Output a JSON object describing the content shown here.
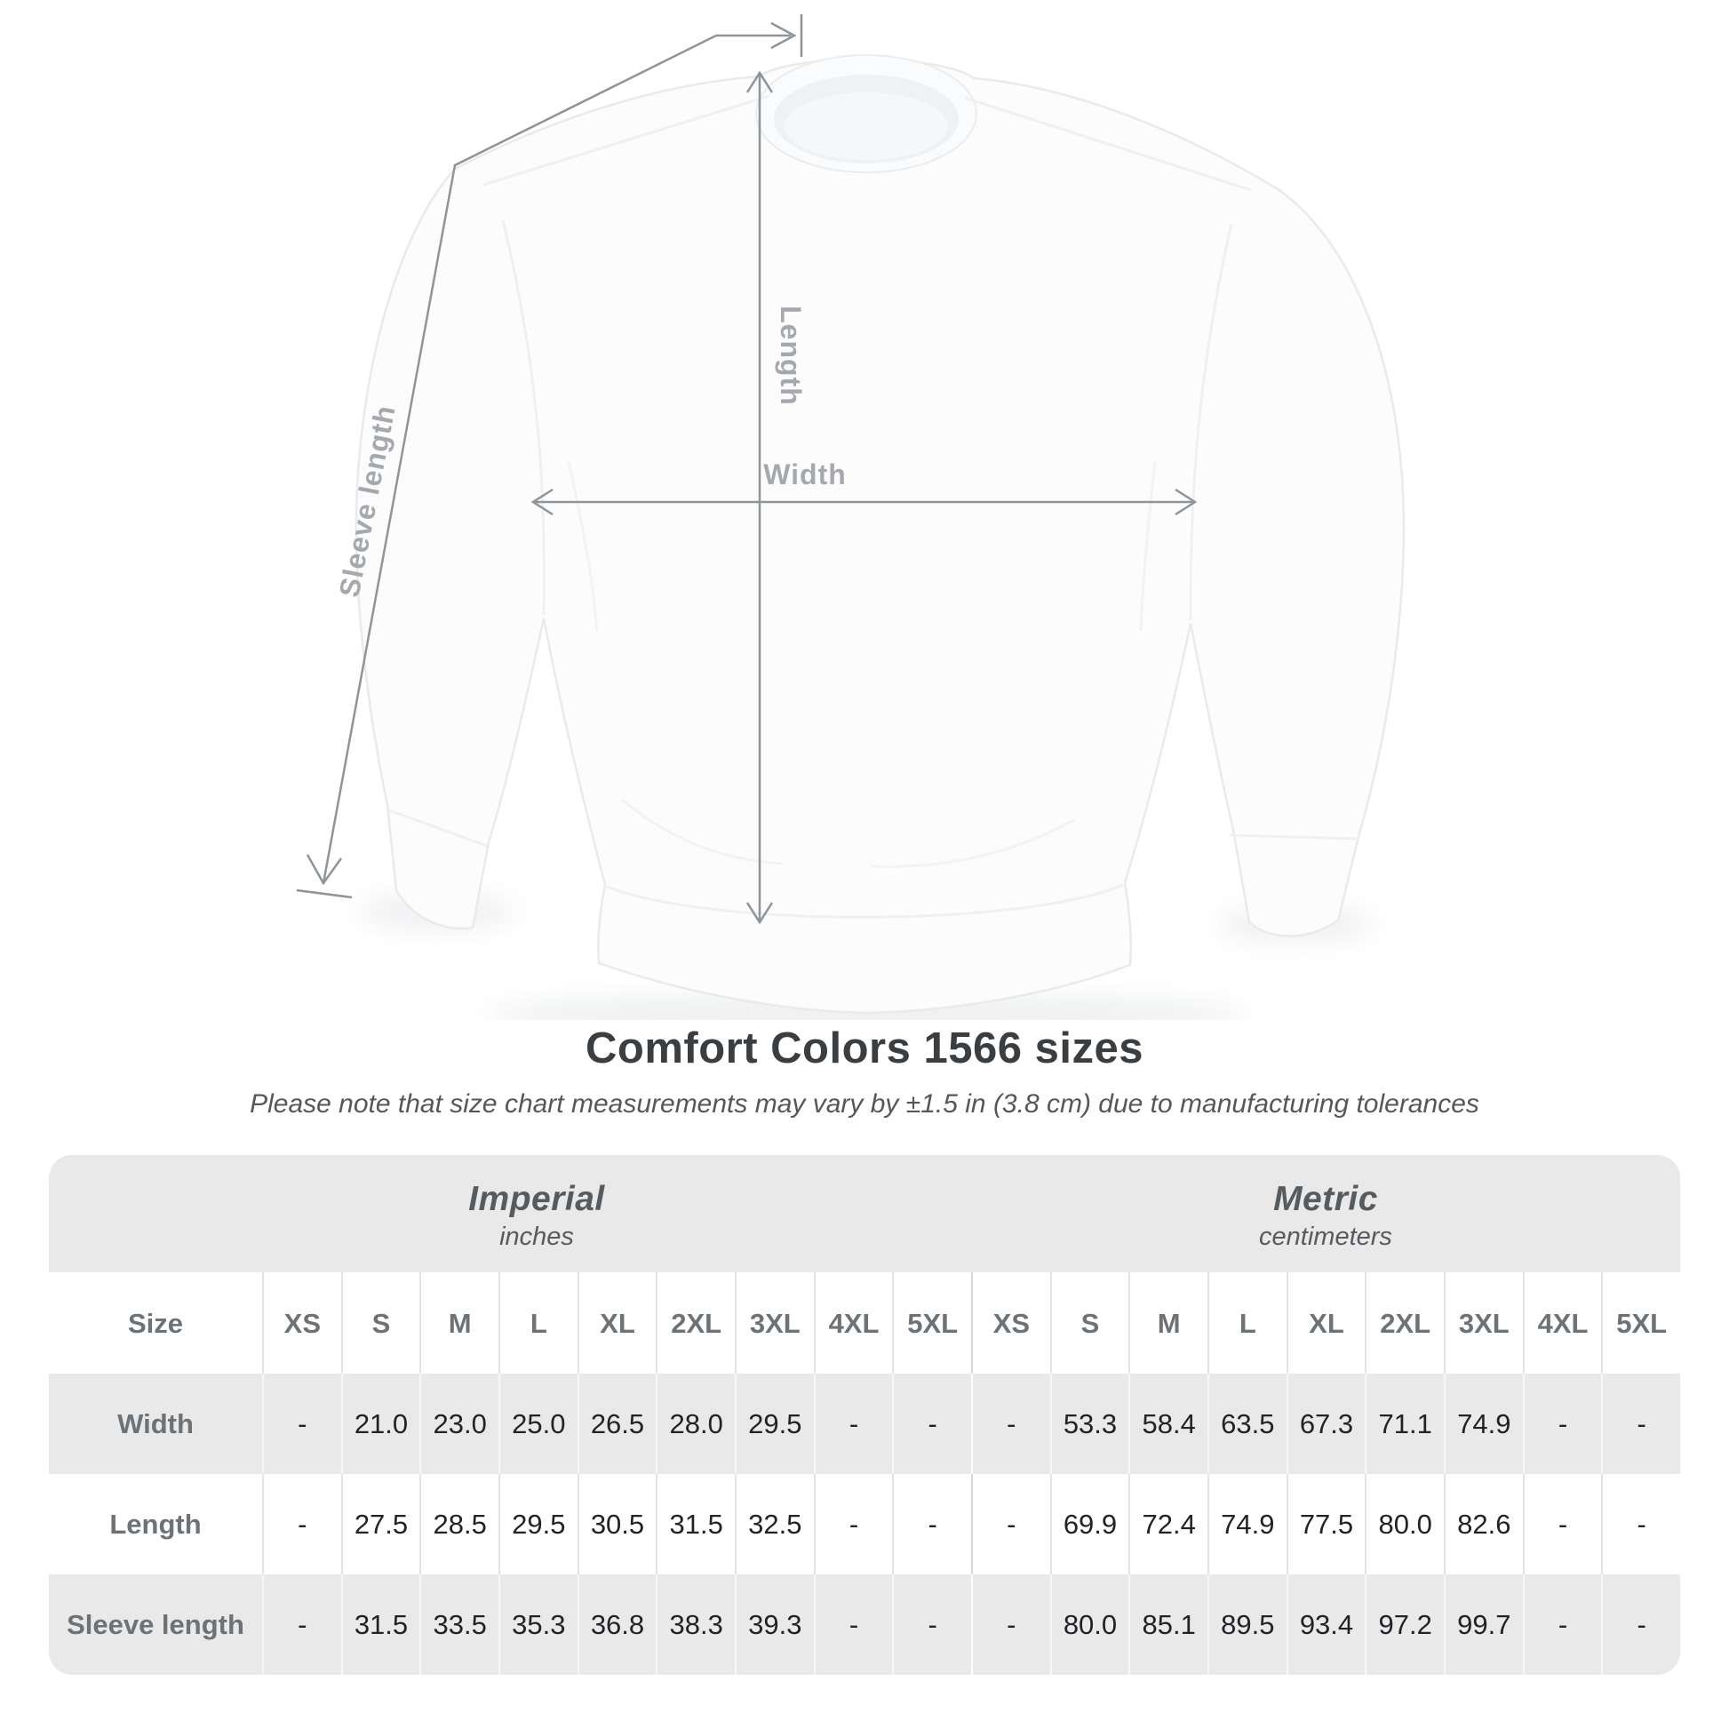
{
  "heading": {
    "title": "Comfort Colors 1566 sizes",
    "subtitle": "Please note that size chart measurements may vary by ±1.5 in (3.8 cm) due to manufacturing tolerances"
  },
  "diagram": {
    "labels": {
      "sleeve_length": "Sleeve length",
      "length": "Length",
      "width": "Width"
    },
    "line_color": "#8f9498",
    "label_color": "#a5a9ad"
  },
  "table": {
    "corner_label": "Size",
    "sections": [
      {
        "name": "Imperial",
        "unit": "inches"
      },
      {
        "name": "Metric",
        "unit": "centimeters"
      }
    ],
    "size_headers": [
      "XS",
      "S",
      "M",
      "L",
      "XL",
      "2XL",
      "3XL",
      "4XL",
      "5XL",
      "XS",
      "S",
      "M",
      "L",
      "XL",
      "2XL",
      "3XL",
      "4XL",
      "5XL"
    ],
    "rows": [
      {
        "label": "Width",
        "values": [
          "-",
          "21.0",
          "23.0",
          "25.0",
          "26.5",
          "28.0",
          "29.5",
          "-",
          "-",
          "-",
          "53.3",
          "58.4",
          "63.5",
          "67.3",
          "71.1",
          "74.9",
          "-",
          "-"
        ]
      },
      {
        "label": "Length",
        "values": [
          "-",
          "27.5",
          "28.5",
          "29.5",
          "30.5",
          "31.5",
          "32.5",
          "-",
          "-",
          "-",
          "69.9",
          "72.4",
          "74.9",
          "77.5",
          "80.0",
          "82.6",
          "-",
          "-"
        ]
      },
      {
        "label": "Sleeve length",
        "values": [
          "-",
          "31.5",
          "33.5",
          "35.3",
          "36.8",
          "38.3",
          "39.3",
          "-",
          "-",
          "-",
          "80.0",
          "85.1",
          "89.5",
          "93.4",
          "97.2",
          "99.7",
          "-",
          "-"
        ]
      }
    ]
  },
  "colors": {
    "table_band_bg": "#e9e9ea",
    "row_alt_bg": "#e9e9ea",
    "heading_text": "#3a3e41",
    "muted_text": "#6d7276"
  }
}
